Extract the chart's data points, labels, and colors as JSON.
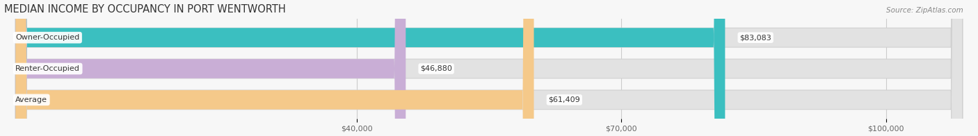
{
  "title": "MEDIAN INCOME BY OCCUPANCY IN PORT WENTWORTH",
  "source": "Source: ZipAtlas.com",
  "categories": [
    "Owner-Occupied",
    "Renter-Occupied",
    "Average"
  ],
  "values": [
    83083,
    46880,
    61409
  ],
  "bar_colors": [
    "#3bbfc0",
    "#c9aed6",
    "#f5c98a"
  ],
  "bar_bg_color": "#e2e2e2",
  "bar_bg_outline": "#d0d0d0",
  "value_labels": [
    "$83,083",
    "$46,880",
    "$61,409"
  ],
  "x_ticks": [
    40000,
    70000,
    100000
  ],
  "x_tick_labels": [
    "$40,000",
    "$70,000",
    "$100,000"
  ],
  "x_min": 0,
  "x_max": 110000,
  "title_fontsize": 10.5,
  "label_fontsize": 8.0,
  "tick_fontsize": 8.0,
  "bar_height": 0.62,
  "background_color": "#f7f7f7",
  "label_bg_color": "#ffffff",
  "grid_color": "#cccccc"
}
